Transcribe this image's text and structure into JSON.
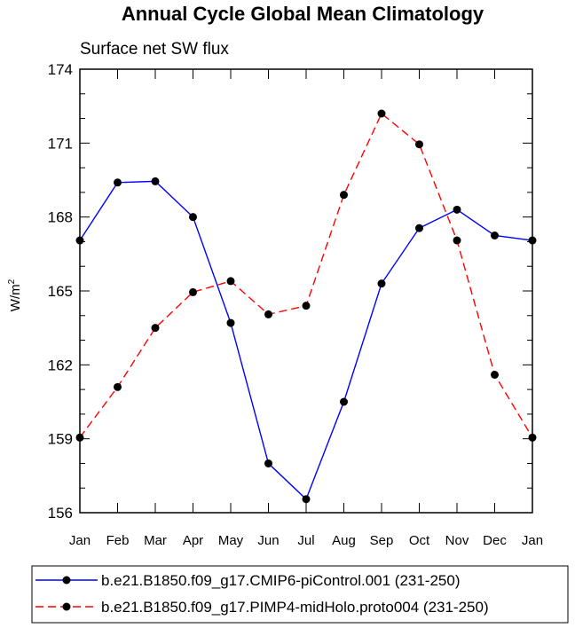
{
  "chart_data": {
    "type": "line",
    "title": "Annual Cycle Global Mean Climatology",
    "subtitle": "Surface net SW flux",
    "ylabel": "W/m",
    "ylabel_sup": "2",
    "xlabel": "",
    "categories": [
      "Jan",
      "Feb",
      "Mar",
      "Apr",
      "May",
      "Jun",
      "Jul",
      "Aug",
      "Sep",
      "Oct",
      "Nov",
      "Dec",
      "Jan"
    ],
    "ylim": [
      156,
      174
    ],
    "yticks": [
      156,
      159,
      162,
      165,
      168,
      171,
      174
    ],
    "ytick_labels": [
      "156",
      "159",
      "162",
      "165",
      "168",
      "171",
      "174"
    ],
    "series": [
      {
        "name": "b.e21.B1850.f09_g17.CMIP6-piControl.001 (231-250)",
        "color": "#0000ff",
        "dash": "solid",
        "values": [
          167.05,
          169.4,
          169.45,
          168.0,
          163.7,
          158.0,
          156.55,
          160.5,
          165.3,
          167.55,
          168.3,
          167.25,
          167.05
        ]
      },
      {
        "name": "b.e21.B1850.f09_g17.PIMP4-midHolo.proto004 (231-250)",
        "color": "#ff0000",
        "dash": "dashed",
        "values": [
          159.05,
          161.1,
          163.5,
          164.95,
          165.4,
          164.05,
          164.4,
          168.9,
          172.2,
          170.95,
          167.05,
          161.6,
          159.05
        ]
      }
    ],
    "legend_position": "bottom"
  }
}
